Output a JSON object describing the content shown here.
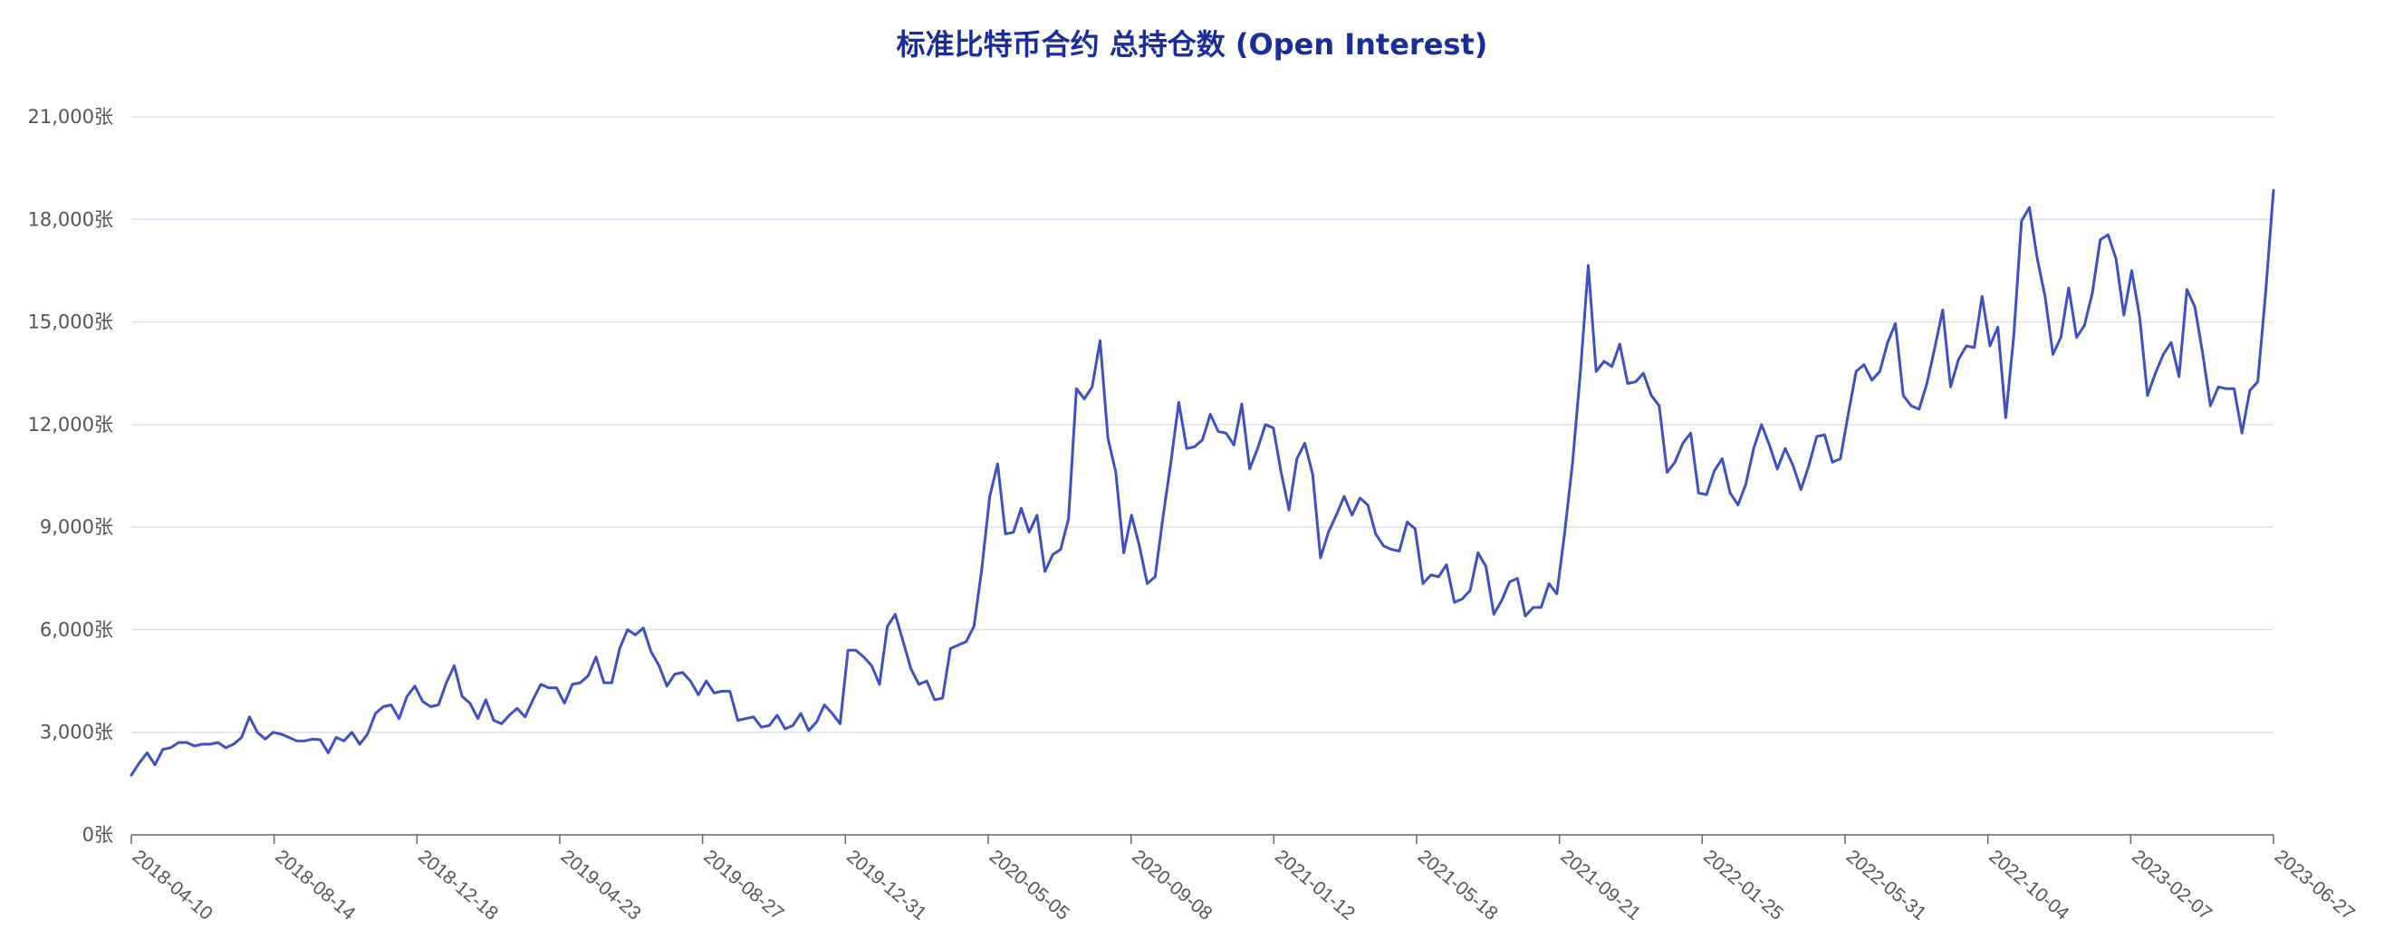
{
  "chart_data": {
    "type": "line",
    "title": "标准比特币合约 总持仓数 (Open Interest)",
    "xlabel": "",
    "ylabel": "",
    "ylim": [
      0,
      21000
    ],
    "y_ticks": [
      0,
      3000,
      6000,
      9000,
      12000,
      15000,
      18000,
      21000
    ],
    "y_tick_labels": [
      "0张",
      "3,000张",
      "6,000张",
      "9,000张",
      "12,000张",
      "15,000张",
      "18,000张",
      "21,000张"
    ],
    "x_tick_labels": [
      "2018-04-10",
      "2018-08-14",
      "2018-12-18",
      "2019-04-23",
      "2019-08-27",
      "2019-12-31",
      "2020-05-05",
      "2020-09-08",
      "2021-01-12",
      "2021-05-18",
      "2021-09-21",
      "2022-01-25",
      "2022-05-31",
      "2022-10-04",
      "2023-02-07",
      "2023-06-27"
    ],
    "grid": true,
    "legend": "none",
    "series_color": "#4050c0",
    "series": [
      {
        "values": [
          1750,
          2100,
          2400,
          2050,
          2500,
          2550,
          2700,
          2700,
          2600,
          2650,
          2650,
          2700,
          2550,
          2650,
          2850,
          3450,
          3000,
          2800,
          3000,
          2950,
          2850,
          2750,
          2750,
          2800,
          2780,
          2400,
          2850,
          2750,
          3000,
          2650,
          2950,
          3550,
          3750,
          3800,
          3400,
          4050,
          4350,
          3900,
          3750,
          3800,
          4450,
          4950,
          4050,
          3850,
          3400,
          3950,
          3350,
          3250,
          3500,
          3700,
          3450,
          3950,
          4400,
          4300,
          4300,
          3850,
          4400,
          4450,
          4650,
          5200,
          4450,
          4450,
          5450,
          6000,
          5850,
          6050,
          5350,
          4950,
          4350,
          4700,
          4750,
          4500,
          4100,
          4500,
          4150,
          4200,
          4200,
          3350,
          3400,
          3450,
          3150,
          3200,
          3500,
          3100,
          3200,
          3550,
          3050,
          3300,
          3800,
          3550,
          3250,
          5400,
          5400,
          5200,
          4950,
          4400,
          6100,
          6450,
          5650,
          4850,
          4400,
          4500,
          3950,
          4000,
          5450,
          5550,
          5650,
          6100,
          7800,
          9900,
          10850,
          8800,
          8850,
          9550,
          8850,
          9350,
          7700,
          8200,
          8350,
          9250,
          13050,
          12750,
          13100,
          14450,
          11600,
          10600,
          8250,
          9350,
          8450,
          7350,
          7550,
          9300,
          10900,
          12650,
          11300,
          11350,
          11550,
          12300,
          11800,
          11750,
          11400,
          12600,
          10700,
          11300,
          12000,
          11900,
          10600,
          9500,
          11000,
          11450,
          10550,
          8100,
          8850,
          9350,
          9900,
          9350,
          9850,
          9650,
          8800,
          8450,
          8350,
          8300,
          9150,
          8950,
          7350,
          7600,
          7550,
          7900,
          6800,
          6900,
          7150,
          8250,
          7850,
          6450,
          6850,
          7400,
          7500,
          6400,
          6650,
          6650,
          7350,
          7050,
          8850,
          10900,
          13550,
          16650,
          13550,
          13850,
          13700,
          14350,
          13200,
          13250,
          13500,
          12850,
          12550,
          10600,
          10900,
          11450,
          11750,
          10000,
          9950,
          10650,
          11000,
          10000,
          9650,
          10250,
          11300,
          12000,
          11400,
          10700,
          11300,
          10800,
          10100,
          10800,
          11650,
          11700,
          10900,
          11000,
          12300,
          13550,
          13750,
          13300,
          13550,
          14400,
          14950,
          12850,
          12550,
          12450,
          13200,
          14250,
          15350,
          13100,
          13900,
          14300,
          14250,
          15750,
          14300,
          14850,
          12200,
          14550,
          17950,
          18350,
          16850,
          15750,
          14050,
          14550,
          16000,
          14550,
          14900,
          15850,
          17400,
          17550,
          16850,
          15200,
          16500,
          15150,
          12850,
          13500,
          14050,
          14400,
          13400,
          15950,
          15450,
          14100,
          12550,
          13100,
          13050,
          13050,
          11750,
          13000,
          13250,
          15850,
          18850
        ]
      }
    ]
  }
}
